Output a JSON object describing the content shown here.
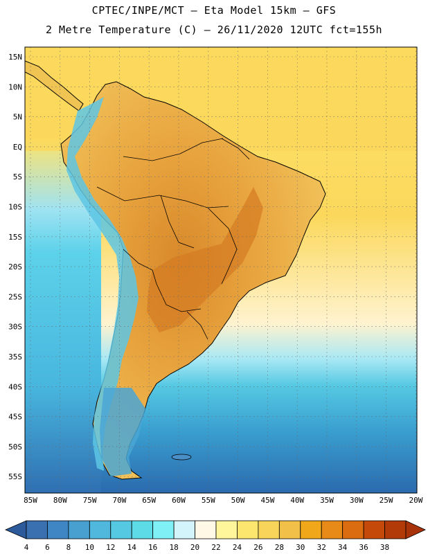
{
  "title": {
    "line1": "CPTEC/INPE/MCT –  Eta Model 15km – GFS",
    "line2": "2 Metre Temperature (C) – 26/11/2020 12UTC fct=155h"
  },
  "axes": {
    "lat_labels": [
      "15N",
      "10N",
      "5N",
      "EQ",
      "5S",
      "10S",
      "15S",
      "20S",
      "25S",
      "30S",
      "35S",
      "40S",
      "45S",
      "50S",
      "55S"
    ],
    "lon_labels": [
      "85W",
      "80W",
      "75W",
      "70W",
      "65W",
      "60W",
      "55W",
      "50W",
      "45W",
      "40W",
      "35W",
      "30W",
      "25W",
      "20W"
    ]
  },
  "colorbar": {
    "labels": [
      "4",
      "6",
      "8",
      "10",
      "12",
      "14",
      "16",
      "18",
      "20",
      "22",
      "24",
      "26",
      "28",
      "30",
      "32",
      "34",
      "36",
      "38"
    ],
    "colors": [
      "#3a6fb0",
      "#3f86c4",
      "#47a0d0",
      "#4fb8dc",
      "#55c8e2",
      "#5ddce8",
      "#7ff0f5",
      "#d4f4fb",
      "#fff8e6",
      "#fff59a",
      "#fde66e",
      "#f8d55a",
      "#f0c049",
      "#f0a81a",
      "#e88a18",
      "#dc6c10",
      "#c54a0a",
      "#b23a08"
    ],
    "end_left_color": "#2c5a9a",
    "end_right_color": "#a8320a"
  },
  "map": {
    "ocean_gradient": [
      "#fde36a",
      "#fbd85c",
      "#fff6d8",
      "#7ad8ee",
      "#4fc0e0",
      "#2e8ec6",
      "#2a6fb0"
    ],
    "land_warm": "#eaa43a",
    "land_hot": "#d98a2c",
    "andes_cool": "#5dc6e4"
  }
}
